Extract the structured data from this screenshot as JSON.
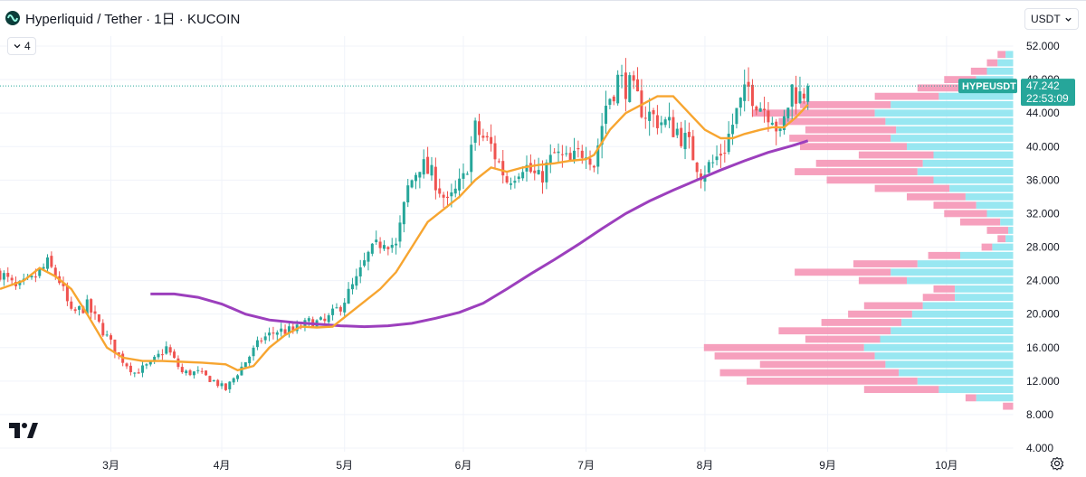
{
  "header": {
    "title": "Hyperliquid / Tether · 1日 · KUCOIN",
    "indicator_count": "4",
    "currency": "USDT"
  },
  "colors": {
    "up": "#26a69a",
    "down": "#ef5350",
    "ma_fast": "#f7a530",
    "ma_slow": "#9c3fbd",
    "vp_up": "#86e3ef",
    "vp_down": "#f48fb1",
    "price_label": "#26a69a",
    "price_line": "#26a69a"
  },
  "chart_data": {
    "type": "candlestick",
    "symbol": "HYPEUSDT",
    "last_price": "47.242",
    "countdown": "22:53:09",
    "y_axis": {
      "range": [
        4,
        54
      ],
      "ticks": [
        "52.000",
        "48.000",
        "44.000",
        "40.000",
        "36.000",
        "32.000",
        "28.000",
        "24.000",
        "20.000",
        "16.000",
        "12.000",
        "8.000",
        "4.000"
      ]
    },
    "x_axis": {
      "labels": [
        {
          "label": "3月",
          "day": 28
        },
        {
          "label": "4月",
          "day": 56
        },
        {
          "label": "5月",
          "day": 87
        },
        {
          "label": "6月",
          "day": 117
        },
        {
          "label": "7月",
          "day": 148
        },
        {
          "label": "8月",
          "day": 178
        },
        {
          "label": "9月",
          "day": 209
        },
        {
          "label": "10月",
          "day": 239
        }
      ],
      "day_range": [
        0,
        262
      ]
    },
    "close_anchors": [
      [
        0,
        25
      ],
      [
        4,
        23
      ],
      [
        8,
        24
      ],
      [
        12,
        26
      ],
      [
        15,
        24
      ],
      [
        18,
        20
      ],
      [
        22,
        21
      ],
      [
        26,
        18
      ],
      [
        30,
        15
      ],
      [
        34,
        13
      ],
      [
        38,
        14
      ],
      [
        42,
        16
      ],
      [
        46,
        13
      ],
      [
        50,
        13
      ],
      [
        54,
        12
      ],
      [
        57,
        11
      ],
      [
        60,
        13
      ],
      [
        63,
        15
      ],
      [
        66,
        17
      ],
      [
        70,
        18
      ],
      [
        74,
        18
      ],
      [
        78,
        19
      ],
      [
        82,
        19
      ],
      [
        86,
        21
      ],
      [
        90,
        24
      ],
      [
        93,
        27
      ],
      [
        97,
        29
      ],
      [
        100,
        28
      ],
      [
        103,
        35
      ],
      [
        106,
        38
      ],
      [
        110,
        36
      ],
      [
        113,
        33
      ],
      [
        117,
        36
      ],
      [
        120,
        42
      ],
      [
        124,
        40
      ],
      [
        128,
        36
      ],
      [
        132,
        38
      ],
      [
        136,
        36
      ],
      [
        140,
        39
      ],
      [
        144,
        38
      ],
      [
        148,
        40
      ],
      [
        150,
        38
      ],
      [
        153,
        45
      ],
      [
        156,
        48
      ],
      [
        159,
        47
      ],
      [
        163,
        44
      ],
      [
        167,
        43
      ],
      [
        171,
        42
      ],
      [
        174,
        40
      ],
      [
        177,
        37
      ],
      [
        180,
        38
      ],
      [
        183,
        40
      ],
      [
        186,
        44
      ],
      [
        189,
        47
      ],
      [
        192,
        45
      ],
      [
        195,
        44
      ],
      [
        197,
        41
      ],
      [
        200,
        47
      ],
      [
        202,
        46
      ],
      [
        204,
        47.2
      ]
    ],
    "ma_fast": {
      "name": "MA fast",
      "points": [
        [
          0,
          23
        ],
        [
          6,
          24
        ],
        [
          10,
          25.5
        ],
        [
          14,
          24.5
        ],
        [
          18,
          23
        ],
        [
          22,
          20
        ],
        [
          27,
          16
        ],
        [
          31,
          14.8
        ],
        [
          36,
          14.4
        ],
        [
          41,
          14.4
        ],
        [
          46,
          14.3
        ],
        [
          51,
          14.2
        ],
        [
          57,
          14
        ],
        [
          60,
          13.3
        ],
        [
          64,
          13.8
        ],
        [
          68,
          16
        ],
        [
          72,
          17.5
        ],
        [
          76,
          18.5
        ],
        [
          80,
          18.4
        ],
        [
          84,
          18.5
        ],
        [
          88,
          20
        ],
        [
          92,
          21.5
        ],
        [
          96,
          23
        ],
        [
          100,
          25
        ],
        [
          104,
          28
        ],
        [
          108,
          31
        ],
        [
          112,
          32.5
        ],
        [
          116,
          34
        ],
        [
          120,
          36
        ],
        [
          124,
          37.5
        ],
        [
          128,
          37
        ],
        [
          132,
          37.5
        ],
        [
          136,
          37.8
        ],
        [
          140,
          38
        ],
        [
          144,
          38.3
        ],
        [
          148,
          38.5
        ],
        [
          150,
          39
        ],
        [
          154,
          42
        ],
        [
          158,
          44
        ],
        [
          162,
          45
        ],
        [
          166,
          46
        ],
        [
          170,
          46
        ],
        [
          174,
          44
        ],
        [
          178,
          42
        ],
        [
          182,
          41
        ],
        [
          185,
          41
        ],
        [
          188,
          41.5
        ],
        [
          192,
          42
        ],
        [
          195,
          42.3
        ],
        [
          198,
          42.3
        ],
        [
          201,
          43.5
        ],
        [
          204,
          45
        ]
      ]
    },
    "ma_slow": {
      "name": "MA slow",
      "points": [
        [
          38,
          22.4
        ],
        [
          44,
          22.4
        ],
        [
          50,
          22
        ],
        [
          56,
          21.2
        ],
        [
          62,
          20
        ],
        [
          68,
          19.3
        ],
        [
          74,
          19
        ],
        [
          80,
          18.8
        ],
        [
          86,
          18.6
        ],
        [
          92,
          18.5
        ],
        [
          98,
          18.6
        ],
        [
          104,
          18.9
        ],
        [
          110,
          19.5
        ],
        [
          116,
          20.2
        ],
        [
          122,
          21.3
        ],
        [
          128,
          23
        ],
        [
          134,
          24.8
        ],
        [
          140,
          26.5
        ],
        [
          146,
          28.3
        ],
        [
          152,
          30.2
        ],
        [
          158,
          32
        ],
        [
          164,
          33.5
        ],
        [
          170,
          34.8
        ],
        [
          176,
          36
        ],
        [
          182,
          37.2
        ],
        [
          188,
          38.3
        ],
        [
          194,
          39.3
        ],
        [
          200,
          40.1
        ],
        [
          204,
          40.7
        ]
      ]
    },
    "volume_profile": [
      [
        9,
        0,
        4
      ],
      [
        10,
        14,
        18
      ],
      [
        11,
        28,
        56
      ],
      [
        12,
        36,
        100
      ],
      [
        13,
        43,
        110
      ],
      [
        14,
        48,
        95
      ],
      [
        15,
        52,
        112
      ],
      [
        16,
        56,
        116
      ],
      [
        17,
        50,
        78
      ],
      [
        18,
        46,
        88
      ],
      [
        19,
        42,
        72
      ],
      [
        20,
        38,
        62
      ],
      [
        21,
        34,
        56
      ],
      [
        22,
        22,
        34
      ],
      [
        23,
        22,
        30
      ],
      [
        24,
        40,
        58
      ],
      [
        25,
        46,
        82
      ],
      [
        26,
        36,
        60
      ],
      [
        27,
        20,
        32
      ],
      [
        28,
        8,
        12
      ],
      [
        29,
        3,
        6
      ],
      [
        30,
        2,
        10
      ],
      [
        31,
        5,
        20
      ],
      [
        32,
        10,
        26
      ],
      [
        33,
        14,
        30
      ],
      [
        34,
        18,
        40
      ],
      [
        35,
        24,
        52
      ],
      [
        36,
        30,
        70
      ],
      [
        37,
        36,
        82
      ],
      [
        38,
        34,
        74
      ],
      [
        39,
        30,
        58
      ],
      [
        40,
        40,
        80
      ],
      [
        41,
        46,
        84
      ],
      [
        42,
        44,
        78
      ],
      [
        43,
        48,
        88
      ],
      [
        44,
        52,
        98
      ],
      [
        45,
        46,
        80
      ],
      [
        46,
        28,
        52
      ],
      [
        47,
        20,
        36
      ],
      [
        48,
        14,
        26
      ],
      [
        49,
        10,
        16
      ],
      [
        50,
        6,
        10
      ],
      [
        51,
        3,
        6
      ]
    ]
  }
}
